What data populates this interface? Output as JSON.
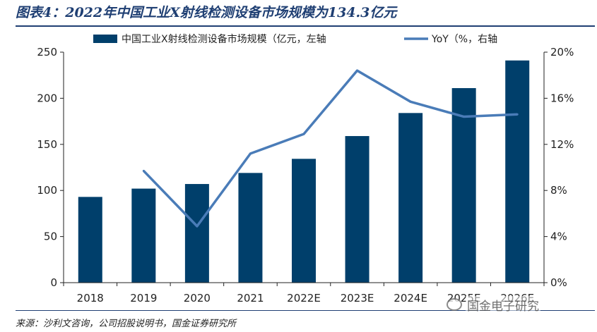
{
  "title": "图表4：2022年中国工业X射线检测设备市场规模为134.3亿元",
  "source": "来源：沙利文咨询，公司招股说明书，国金证券研究所",
  "watermark": "国金电子研究",
  "colors": {
    "bar": "#003f6b",
    "line": "#4a7cb8",
    "title": "#1f3f73"
  },
  "chart_data": {
    "type": "bar",
    "categories": [
      "2018",
      "2019",
      "2020",
      "2021",
      "2022E",
      "2023E",
      "2024E",
      "2025E",
      "2026E"
    ],
    "series": [
      {
        "name": "中国工业X射线检测设备市场规模（亿元，左轴",
        "type": "bar",
        "axis": "left",
        "values": [
          93,
          102,
          107,
          119,
          134.3,
          159,
          184,
          211,
          241
        ]
      },
      {
        "name": "YoY（%，右轴",
        "type": "line",
        "axis": "right",
        "values": [
          null,
          9.7,
          4.9,
          11.2,
          12.9,
          18.4,
          15.7,
          14.4,
          14.6
        ]
      }
    ],
    "left_axis": {
      "min": 0,
      "max": 250,
      "ticks": [
        "0",
        "50",
        "100",
        "150",
        "200",
        "250"
      ]
    },
    "right_axis": {
      "min": 0,
      "max": 20,
      "ticks": [
        "0%",
        "4%",
        "8%",
        "12%",
        "16%",
        "20%"
      ]
    },
    "grid": false,
    "legend": "top"
  }
}
